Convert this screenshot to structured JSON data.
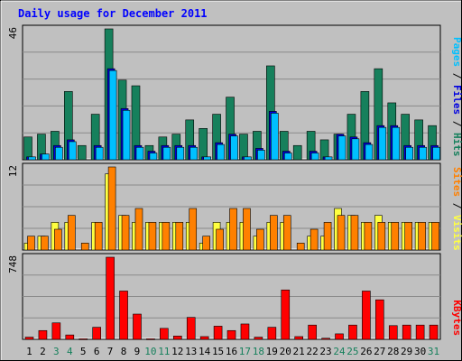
{
  "chart_data": {
    "type": "bar",
    "title": "Daily usage for December 2011",
    "colors": {
      "frame_bg": "#c0c0c0",
      "plot_bg": "#c0c0c0",
      "title": "#0000ff",
      "grid": "#8a8a8a",
      "hits": "#16805c",
      "files": "#0000e0",
      "pages": "#00c0ff",
      "visits": "#ffff40",
      "sites": "#ff8000",
      "kbytes": "#ff0000",
      "weekend": "#16805c",
      "weekday": "#000000"
    },
    "categories": [
      "1",
      "2",
      "3",
      "4",
      "5",
      "6",
      "7",
      "8",
      "9",
      "10",
      "11",
      "12",
      "13",
      "14",
      "15",
      "16",
      "17",
      "18",
      "19",
      "20",
      "21",
      "22",
      "23",
      "24",
      "25",
      "26",
      "27",
      "28",
      "29",
      "30",
      "31"
    ],
    "weekend_days": [
      3,
      4,
      10,
      11,
      17,
      18,
      24,
      25,
      31
    ],
    "panels": [
      {
        "id": "hits-files-pages",
        "ymax_label": "46",
        "ylim": [
          0,
          46
        ],
        "side_label": [
          {
            "text": "Pages",
            "color": "#00c0ff"
          },
          {
            "text": " / ",
            "color": "#000000"
          },
          {
            "text": "Files",
            "color": "#0000e0"
          },
          {
            "text": " / ",
            "color": "#000000"
          },
          {
            "text": "Hits",
            "color": "#16805c"
          }
        ],
        "series": [
          {
            "name": "Hits",
            "color": "#16805c",
            "values": [
              8,
              9,
              10,
              24,
              5,
              16,
              46,
              28,
              26,
              5,
              8,
              9,
              14,
              11,
              16,
              22,
              9,
              10,
              33,
              10,
              5,
              10,
              7,
              9,
              16,
              24,
              32,
              20,
              16,
              14,
              12
            ]
          },
          {
            "name": "Files",
            "color": "#0000e0",
            "values": [
              1,
              2,
              5,
              7,
              0,
              5,
              32,
              18,
              5,
              3,
              5,
              5,
              5,
              1,
              6,
              9,
              1,
              4,
              17,
              3,
              0,
              3,
              1,
              9,
              8,
              6,
              12,
              12,
              5,
              5,
              5
            ]
          },
          {
            "name": "Pages",
            "color": "#00c0ff",
            "values": [
              1,
              2,
              5,
              7,
              0,
              5,
              32,
              18,
              5,
              3,
              5,
              5,
              5,
              1,
              6,
              9,
              1,
              4,
              17,
              3,
              0,
              3,
              1,
              9,
              8,
              6,
              12,
              12,
              5,
              5,
              5
            ]
          }
        ]
      },
      {
        "id": "visits-sites",
        "ymax_label": "12",
        "ylim": [
          0,
          12
        ],
        "side_label": [
          {
            "text": "Sites",
            "color": "#ff8000"
          },
          {
            "text": " / ",
            "color": "#000000"
          },
          {
            "text": "Visits",
            "color": "#ffff40"
          }
        ],
        "series": [
          {
            "name": "Visits",
            "color": "#ffff40",
            "values": [
              1,
              2,
              4,
              4,
              0,
              4,
              11,
              5,
              4,
              4,
              4,
              4,
              4,
              1,
              4,
              4,
              4,
              2,
              4,
              4,
              0,
              2,
              2,
              6,
              5,
              4,
              5,
              4,
              4,
              4,
              4
            ]
          },
          {
            "name": "Sites",
            "color": "#ff8000",
            "values": [
              2,
              2,
              3,
              5,
              1,
              4,
              12,
              5,
              6,
              4,
              4,
              4,
              6,
              2,
              3,
              6,
              6,
              3,
              5,
              5,
              1,
              3,
              4,
              5,
              5,
              4,
              4,
              4,
              4,
              4,
              4
            ]
          }
        ]
      },
      {
        "id": "kbytes",
        "ymax_label": "748",
        "ylim": [
          0,
          748
        ],
        "side_label": [
          {
            "text": "KBytes",
            "color": "#ff0000"
          }
        ],
        "series": [
          {
            "name": "KBytes",
            "color": "#ff0000",
            "values": [
              20,
              80,
              150,
              40,
              5,
              110,
              748,
              440,
              230,
              5,
              100,
              30,
              200,
              25,
              120,
              80,
              140,
              20,
              110,
              450,
              25,
              130,
              10,
              50,
              130,
              440,
              360,
              125,
              130,
              130,
              130
            ]
          }
        ]
      }
    ]
  }
}
